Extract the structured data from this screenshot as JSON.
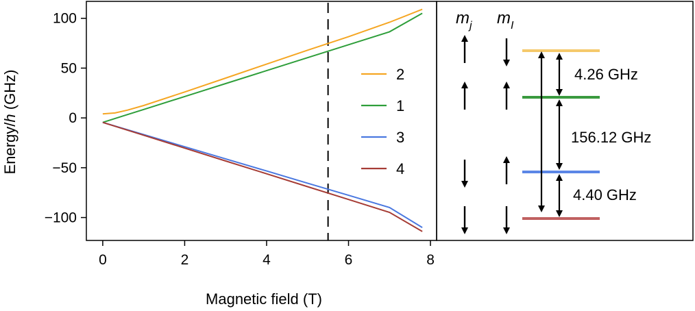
{
  "chart_data": [
    {
      "type": "line",
      "xlabel": "Magnetic field (T)",
      "ylabel_prefix": "Energy/",
      "ylabel_italic": "h",
      "ylabel_suffix": " (GHz)",
      "xlim": [
        -0.4,
        8.15
      ],
      "ylim": [
        -123,
        117
      ],
      "xticks": [
        0,
        2,
        4,
        6,
        8
      ],
      "yticks": [
        100,
        50,
        0,
        -50,
        -100
      ],
      "xtick_labels": [
        "0",
        "2",
        "4",
        "6",
        "8"
      ],
      "ytick_labels": [
        "100",
        "50",
        "0",
        "−50",
        "−100"
      ],
      "grid": false,
      "legend_position": "center-right",
      "vline": {
        "x": 5.5,
        "style": "dashed"
      },
      "series": [
        {
          "name": "2",
          "color": "#f5a623",
          "points": [
            [
              0,
              4
            ],
            [
              0.3,
              5
            ],
            [
              0.6,
              7.8
            ],
            [
              1,
              12.5
            ],
            [
              2,
              26
            ],
            [
              3,
              40
            ],
            [
              4,
              54
            ],
            [
              5,
              68
            ],
            [
              6,
              81.5
            ],
            [
              7,
              96
            ],
            [
              7.8,
              109
            ]
          ]
        },
        {
          "name": "1",
          "color": "#2e9e3a",
          "points": [
            [
              0,
              -4.5
            ],
            [
              0.5,
              2
            ],
            [
              1,
              8.5
            ],
            [
              2,
              21.5
            ],
            [
              3,
              34.5
            ],
            [
              4,
              47.5
            ],
            [
              5,
              60.5
            ],
            [
              6,
              73.5
            ],
            [
              7,
              86.5
            ],
            [
              7.8,
              105
            ]
          ]
        },
        {
          "name": "3",
          "color": "#4a78e0",
          "points": [
            [
              0,
              -4.5
            ],
            [
              1,
              -16.7
            ],
            [
              2,
              -28.9
            ],
            [
              3,
              -41.1
            ],
            [
              4,
              -53.3
            ],
            [
              5,
              -65.5
            ],
            [
              6,
              -77.7
            ],
            [
              7,
              -89.9
            ],
            [
              7.8,
              -110
            ]
          ]
        },
        {
          "name": "4",
          "color": "#a63c35",
          "points": [
            [
              0,
              -4.5
            ],
            [
              1,
              -17.4
            ],
            [
              2,
              -30.3
            ],
            [
              3,
              -43.2
            ],
            [
              4,
              -56.1
            ],
            [
              5,
              -69
            ],
            [
              6,
              -81.9
            ],
            [
              7,
              -94.8
            ],
            [
              7.8,
              -114
            ]
          ]
        }
      ]
    },
    {
      "type": "diagram",
      "headers": [
        {
          "base": "m",
          "sub": "j"
        },
        {
          "base": "m",
          "sub": "I"
        }
      ],
      "levels": [
        {
          "name": "2",
          "color": "#f5c96b",
          "mj": "up",
          "mi": "down"
        },
        {
          "name": "1",
          "color": "#3a9a3f",
          "mj": "up",
          "mi": "up"
        },
        {
          "name": "3",
          "color": "#5b86e6",
          "mj": "down",
          "mi": "up"
        },
        {
          "name": "4",
          "color": "#c06060",
          "mj": "down",
          "mi": "down"
        }
      ],
      "gaps": [
        "4.26 GHz",
        "156.12 GHz",
        "4.40 GHz"
      ]
    }
  ]
}
